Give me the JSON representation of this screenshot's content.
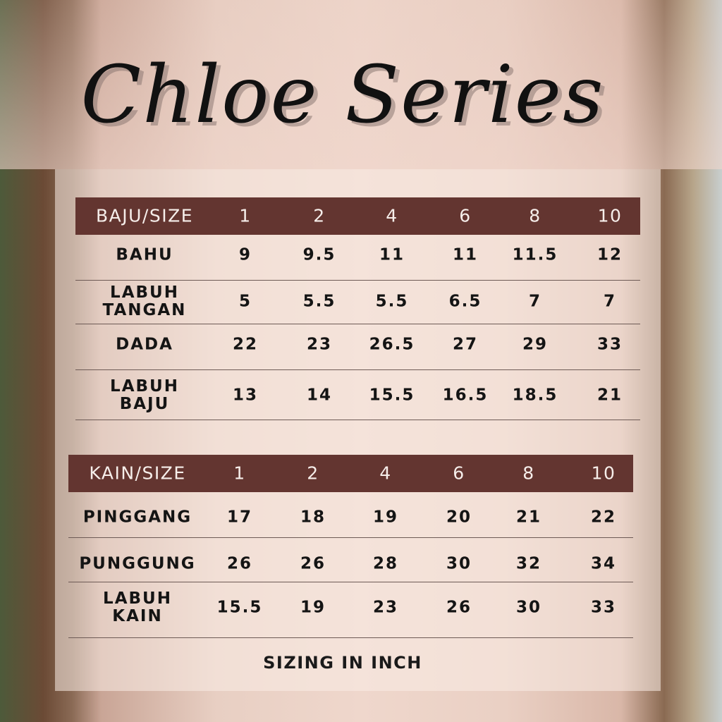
{
  "title": "Chloe Series",
  "baju": {
    "header": [
      "BAJU/SIZE",
      "1",
      "2",
      "4",
      "6",
      "8",
      "10"
    ],
    "rows": [
      {
        "label": [
          "BAHU"
        ],
        "values": [
          "9",
          "9.5",
          "11",
          "11",
          "11.5",
          "12"
        ]
      },
      {
        "label": [
          "LABUH",
          "TANGAN"
        ],
        "values": [
          "5",
          "5.5",
          "5.5",
          "6.5",
          "7",
          "7"
        ]
      },
      {
        "label": [
          "DADA"
        ],
        "values": [
          "22",
          "23",
          "26.5",
          "27",
          "29",
          "33"
        ]
      },
      {
        "label": [
          "LABUH",
          "BAJU"
        ],
        "values": [
          "13",
          "14",
          "15.5",
          "16.5",
          "18.5",
          "21"
        ]
      }
    ]
  },
  "kain": {
    "header": [
      "KAIN/SIZE",
      "1",
      "2",
      "4",
      "6",
      "8",
      "10"
    ],
    "rows": [
      {
        "label": [
          "PINGGANG"
        ],
        "values": [
          "17",
          "18",
          "19",
          "20",
          "21",
          "22"
        ]
      },
      {
        "label": [
          "PUNGGUNG"
        ],
        "values": [
          "26",
          "26",
          "28",
          "30",
          "32",
          "34"
        ]
      },
      {
        "label": [
          "LABUH",
          "KAIN"
        ],
        "values": [
          "15.5",
          "19",
          "23",
          "26",
          "30",
          "33"
        ]
      }
    ]
  },
  "footer": "SIZING IN INCH",
  "colors": {
    "header_bg": "#633530",
    "header_text": "#f6eeea",
    "text": "#141414"
  }
}
